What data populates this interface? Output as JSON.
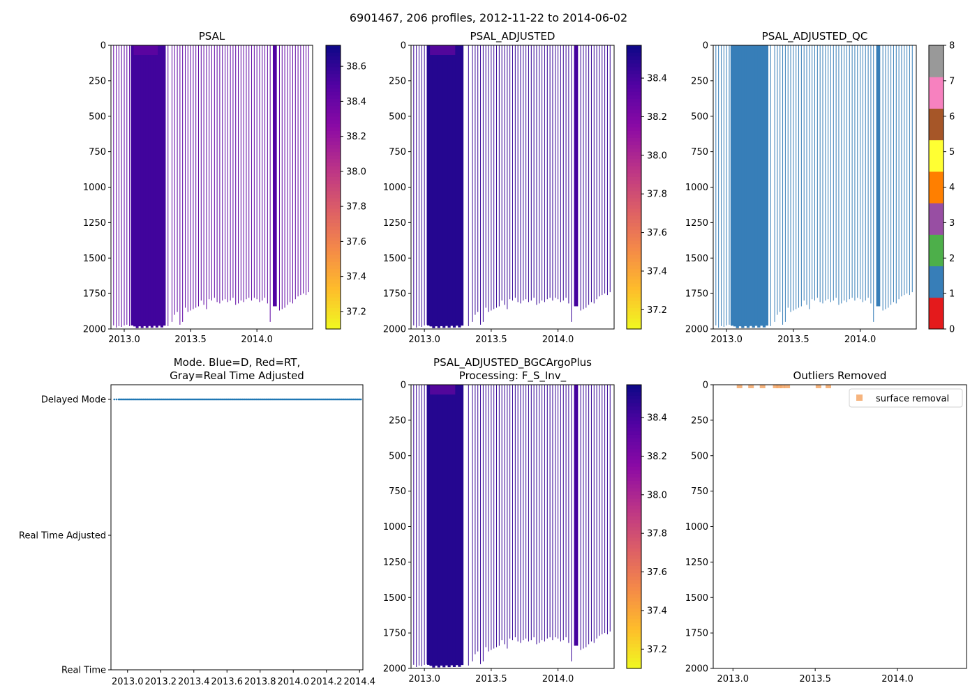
{
  "figure": {
    "suptitle": "6901467, 206 profiles, 2012-11-22 to 2014-06-02"
  },
  "chart_data": [
    {
      "type": "heatmap",
      "id": "psal",
      "title": "PSAL",
      "xlabel": "",
      "ylabel": "",
      "x_ticks": [
        "2013.0",
        "2013.5",
        "2014.0"
      ],
      "y_ticks": [
        "0",
        "250",
        "500",
        "750",
        "1000",
        "1250",
        "1500",
        "1750",
        "2000"
      ],
      "xlim": [
        2012.9,
        2014.42
      ],
      "ylim": [
        2000,
        0
      ],
      "colorbar": {
        "label": "",
        "ticks": [
          "37.2",
          "37.4",
          "37.6",
          "37.8",
          "38.0",
          "38.2",
          "38.4",
          "38.6"
        ],
        "range": [
          37.1,
          38.72
        ],
        "cmap": "plasma_r"
      },
      "dense_blocks": [
        {
          "x0": 2013.05,
          "x1": 2013.31,
          "depth": 1975,
          "value": 38.55
        }
      ],
      "late_block": {
        "x0": 2014.12,
        "x1": 2014.15,
        "depth": 1840,
        "value": 38.5
      },
      "profile_times": [
        2012.92,
        2012.94,
        2012.96,
        2012.98,
        2013.0,
        2013.02,
        2013.04,
        2013.33,
        2013.36,
        2013.38,
        2013.4,
        2013.42,
        2013.44,
        2013.46,
        2013.48,
        2013.5,
        2013.52,
        2013.54,
        2013.56,
        2013.58,
        2013.6,
        2013.62,
        2013.64,
        2013.66,
        2013.68,
        2013.7,
        2013.72,
        2013.74,
        2013.76,
        2013.78,
        2013.8,
        2013.82,
        2013.84,
        2013.86,
        2013.88,
        2013.9,
        2013.92,
        2013.94,
        2013.96,
        2013.98,
        2014.0,
        2014.02,
        2014.04,
        2014.06,
        2014.08,
        2014.1,
        2014.17,
        2014.19,
        2014.21,
        2014.23,
        2014.25,
        2014.27,
        2014.29,
        2014.31,
        2014.33,
        2014.35,
        2014.37,
        2014.39
      ],
      "profile_depths": [
        1975,
        1990,
        1980,
        1985,
        1975,
        1970,
        1980,
        1980,
        1950,
        1900,
        1880,
        1970,
        1950,
        1850,
        1880,
        1870,
        1860,
        1850,
        1840,
        1800,
        1830,
        1860,
        1790,
        1800,
        1780,
        1810,
        1820,
        1800,
        1790,
        1810,
        1800,
        1780,
        1830,
        1820,
        1800,
        1810,
        1790,
        1780,
        1800,
        1780,
        1790,
        1810,
        1800,
        1780,
        1820,
        1950,
        1870,
        1860,
        1850,
        1830,
        1810,
        1820,
        1790,
        1770,
        1760,
        1750,
        1760,
        1740
      ],
      "profile_value": 38.45
    },
    {
      "type": "heatmap",
      "id": "psal_adjusted",
      "title": "PSAL_ADJUSTED",
      "xlabel": "",
      "ylabel": "",
      "x_ticks": [
        "2013.0",
        "2013.5",
        "2014.0"
      ],
      "y_ticks": [
        "0",
        "250",
        "500",
        "750",
        "1000",
        "1250",
        "1500",
        "1750",
        "2000"
      ],
      "xlim": [
        2012.9,
        2014.42
      ],
      "ylim": [
        2000,
        0
      ],
      "colorbar": {
        "label": "",
        "ticks": [
          "37.2",
          "37.4",
          "37.6",
          "37.8",
          "38.0",
          "38.2",
          "38.4"
        ],
        "range": [
          37.1,
          38.57
        ],
        "cmap": "plasma_r"
      },
      "dense_blocks": [
        {
          "x0": 2013.02,
          "x1": 2013.29,
          "depth": 1975,
          "value": 38.5
        }
      ],
      "late_block": {
        "x0": 2014.12,
        "x1": 2014.15,
        "depth": 1840,
        "value": 38.4
      },
      "profile_value": 38.45
    },
    {
      "type": "heatmap",
      "id": "psal_adjusted_qc",
      "title": "PSAL_ADJUSTED_QC",
      "xlabel": "",
      "ylabel": "",
      "x_ticks": [
        "2013.0",
        "2013.5",
        "2014.0"
      ],
      "y_ticks": [
        "0",
        "250",
        "500",
        "750",
        "1000",
        "1250",
        "1500",
        "1750",
        "2000"
      ],
      "xlim": [
        2012.9,
        2014.42
      ],
      "ylim": [
        2000,
        0
      ],
      "colorbar": {
        "label": "",
        "ticks": [
          "0",
          "1",
          "2",
          "3",
          "4",
          "5",
          "6",
          "7",
          "8"
        ],
        "range": [
          0,
          8
        ],
        "categories": [
          {
            "value": 0,
            "color": "#e41a1c"
          },
          {
            "value": 1,
            "color": "#377eb8"
          },
          {
            "value": 2,
            "color": "#4daf4a"
          },
          {
            "value": 3,
            "color": "#984ea3"
          },
          {
            "value": 4,
            "color": "#ff7f00"
          },
          {
            "value": 5,
            "color": "#ffff33"
          },
          {
            "value": 6,
            "color": "#a65628"
          },
          {
            "value": 7,
            "color": "#f781bf"
          },
          {
            "value": 8,
            "color": "#999999"
          }
        ]
      },
      "dense_blocks": [
        {
          "x0": 2013.03,
          "x1": 2013.31,
          "depth": 1975,
          "value": 1
        }
      ],
      "late_block": {
        "x0": 2014.12,
        "x1": 2014.15,
        "depth": 1840,
        "value": 1
      },
      "profile_value": 1
    },
    {
      "type": "scatter",
      "id": "mode",
      "title": "Mode. Blue=D, Red=RT,",
      "title_line2": "Gray=Real Time Adjusted",
      "xlabel": "",
      "ylabel": "",
      "x_ticks": [
        "2013.0",
        "2013.2",
        "2013.4",
        "2013.6",
        "2013.8",
        "2014.0",
        "2014.2",
        "2014.4"
      ],
      "y_ticks": [
        "Delayed Mode",
        "Real Time Adjusted",
        "Real Time"
      ],
      "xlim": [
        2012.9,
        2014.42
      ],
      "series": [
        {
          "name": "Delayed Mode",
          "color": "#1f77b4",
          "x_range": [
            2012.9,
            2014.42
          ],
          "y": "Delayed Mode"
        }
      ]
    },
    {
      "type": "heatmap",
      "id": "psal_bgc",
      "title": "PSAL_ADJUSTED_BGCArgoPlus",
      "title_line2": "Processing: F_S_Inv_",
      "xlabel": "",
      "ylabel": "",
      "x_ticks": [
        "2013.0",
        "2013.5",
        "2014.0"
      ],
      "y_ticks": [
        "0",
        "250",
        "500",
        "750",
        "1000",
        "1250",
        "1500",
        "1750",
        "2000"
      ],
      "xlim": [
        2012.9,
        2014.42
      ],
      "ylim": [
        2000,
        0
      ],
      "colorbar": {
        "label": "",
        "ticks": [
          "37.2",
          "37.4",
          "37.6",
          "37.8",
          "38.0",
          "38.2",
          "38.4"
        ],
        "range": [
          37.1,
          38.57
        ],
        "cmap": "plasma_r"
      },
      "dense_blocks": [
        {
          "x0": 2013.02,
          "x1": 2013.29,
          "depth": 1975,
          "value": 38.5
        }
      ],
      "late_block": {
        "x0": 2014.12,
        "x1": 2014.15,
        "depth": 1840,
        "value": 38.4
      },
      "profile_value": 38.45
    },
    {
      "type": "scatter",
      "id": "outliers",
      "title": "Outliers Removed",
      "xlabel": "",
      "ylabel": "",
      "x_ticks": [
        "2013.0",
        "2013.5",
        "2014.0"
      ],
      "y_ticks": [
        "0",
        "250",
        "500",
        "750",
        "1000",
        "1250",
        "1500",
        "1750",
        "2000"
      ],
      "xlim": [
        2012.88,
        2014.42
      ],
      "ylim": [
        2000,
        0
      ],
      "legend": {
        "label": "surface removal",
        "color": "#f5a767",
        "location": "upper right"
      },
      "series": [
        {
          "name": "surface removal",
          "color": "#f5a767",
          "x": [
            2013.04,
            2013.11,
            2013.18,
            2013.26,
            2013.28,
            2013.3,
            2013.33,
            2013.52,
            2013.58
          ],
          "y": [
            5,
            5,
            5,
            5,
            5,
            5,
            5,
            5,
            5
          ]
        }
      ]
    }
  ]
}
